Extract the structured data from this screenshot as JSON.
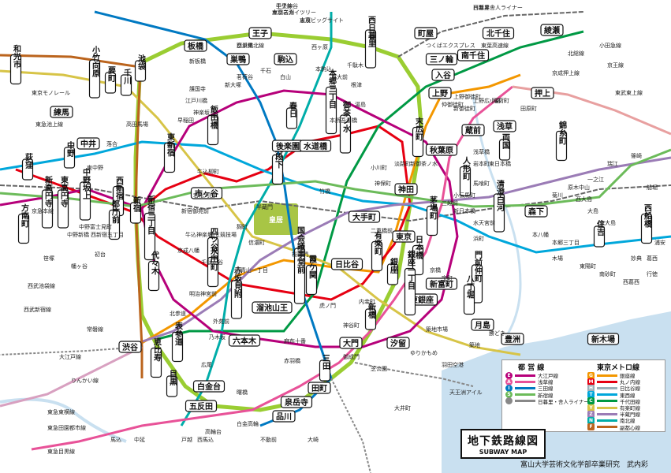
{
  "colors": {
    "ginza": "#f39700",
    "marunouchi": "#e60012",
    "hibiya": "#9caeb7",
    "tozai": "#00a7db",
    "chiyoda": "#009944",
    "yurakucho": "#d7c447",
    "hanzomon": "#9b7cb6",
    "namboku": "#00ada9",
    "fukutoshin": "#bb641d",
    "oedo": "#b6007a",
    "asakusa": "#e85298",
    "mita": "#0079c2",
    "shinjuku": "#6cbb5a",
    "jr_yamanote": "#9acd32",
    "jr": "#666666",
    "water": "#c9e0f0",
    "palace": "#a8c545"
  },
  "palace": {
    "label": "皇居"
  },
  "stations": [
    {
      "id": "ikebukuro",
      "label": "池袋"
    },
    {
      "id": "shinjuku",
      "label": "新宿"
    },
    {
      "id": "shibuya",
      "label": "渋谷"
    },
    {
      "id": "tokyo",
      "label": "東京"
    },
    {
      "id": "ueno",
      "label": "上野"
    },
    {
      "id": "otemachi",
      "label": "大手町"
    },
    {
      "id": "ginza",
      "label": "銀座"
    },
    {
      "id": "oji",
      "label": "王子"
    },
    {
      "id": "itabashi",
      "label": "板橋"
    },
    {
      "id": "sugamo",
      "label": "巣鴨"
    },
    {
      "id": "komagome",
      "label": "駒込"
    },
    {
      "id": "nishinippori",
      "label": "西日暮里"
    },
    {
      "id": "machiya",
      "label": "町屋"
    },
    {
      "id": "kitasenju",
      "label": "北千住"
    },
    {
      "id": "ayase",
      "label": "綾瀬"
    },
    {
      "id": "oshiage",
      "label": "押上"
    },
    {
      "id": "kinshicho",
      "label": "錦糸町"
    },
    {
      "id": "akihabara",
      "label": "秋葉原"
    },
    {
      "id": "kanda",
      "label": "神田"
    },
    {
      "id": "iidabashi",
      "label": "飯田橋"
    },
    {
      "id": "ichigaya",
      "label": "市ヶ谷"
    },
    {
      "id": "yotsuya",
      "label": "四ツ谷"
    },
    {
      "id": "akasakamitsuke",
      "label": "赤坂見附"
    },
    {
      "id": "tameikesanno",
      "label": "溜池山王"
    },
    {
      "id": "kasumigaseki",
      "label": "霞ケ関"
    },
    {
      "id": "hibiya",
      "label": "日比谷"
    },
    {
      "id": "yurakucho",
      "label": "有楽町"
    },
    {
      "id": "shinbashi",
      "label": "新橋"
    },
    {
      "id": "shiodome",
      "label": "汐留"
    },
    {
      "id": "daimon",
      "label": "大門"
    },
    {
      "id": "mita",
      "label": "三田"
    },
    {
      "id": "tamachi",
      "label": "田町"
    },
    {
      "id": "shinagawa",
      "label": "品川"
    },
    {
      "id": "gotanda",
      "label": "五反田"
    },
    {
      "id": "meguro",
      "label": "目黒"
    },
    {
      "id": "ebisu",
      "label": "恵比寿"
    },
    {
      "id": "omotesando",
      "label": "表参道"
    },
    {
      "id": "roppongi",
      "label": "六本木"
    },
    {
      "id": "nakano",
      "label": "中野"
    },
    {
      "id": "ogikubo",
      "label": "荻窪"
    },
    {
      "id": "nerima",
      "label": "練馬"
    },
    {
      "id": "nakai",
      "label": "中井"
    },
    {
      "id": "kudanshita",
      "label": "九段下"
    },
    {
      "id": "kasuga",
      "label": "春日"
    },
    {
      "id": "korakuen",
      "label": "後楽園"
    },
    {
      "id": "ochanomizu",
      "label": "御茶ノ水"
    },
    {
      "id": "nihonbashi",
      "label": "日本橋"
    },
    {
      "id": "kayabacho",
      "label": "茅場町"
    },
    {
      "id": "monzennakacho",
      "label": "門前仲町"
    },
    {
      "id": "kiyosumi",
      "label": "清澄白河"
    },
    {
      "id": "morishita",
      "label": "森下"
    },
    {
      "id": "sumiyoshi",
      "label": "住吉"
    },
    {
      "id": "nishifunabashi",
      "label": "西船橋"
    },
    {
      "id": "honancho",
      "label": "方南町"
    },
    {
      "id": "toyosu",
      "label": "豊洲"
    },
    {
      "id": "tsukishima",
      "label": "月島"
    },
    {
      "id": "shintomicho",
      "label": "新富町"
    },
    {
      "id": "shinkiba",
      "label": "新木場"
    },
    {
      "id": "sengakuji",
      "label": "泉岳寺"
    },
    {
      "id": "kudan",
      "label": "水道橋"
    },
    {
      "id": "ryogoku",
      "label": "両国"
    },
    {
      "id": "asakusa",
      "label": "浅草"
    },
    {
      "id": "kuramae",
      "label": "蔵前"
    },
    {
      "id": "higashiginza",
      "label": "東銀座"
    },
    {
      "id": "hatchobori",
      "label": "八丁堀"
    },
    {
      "id": "shirokane",
      "label": "白金台"
    },
    {
      "id": "higashishinjuku",
      "label": "東新宿"
    },
    {
      "id": "shinjukusanchome",
      "label": "新宿三丁目"
    },
    {
      "id": "nishishinjuku",
      "label": "西新宿"
    },
    {
      "id": "tochomae",
      "label": "都庁前"
    },
    {
      "id": "yoyogi",
      "label": "代々木"
    },
    {
      "id": "kokkai",
      "label": "国会議事堂前"
    },
    {
      "id": "nagatacho",
      "label": "永田町"
    },
    {
      "id": "ningyocho",
      "label": "人形町"
    },
    {
      "id": "minowa",
      "label": "三ノ輪"
    },
    {
      "id": "iriya",
      "label": "入谷"
    },
    {
      "id": "minamisenju",
      "label": "南千住"
    },
    {
      "id": "wakoshi",
      "label": "和光市"
    },
    {
      "id": "kotakemukaihara",
      "label": "小竹向原"
    },
    {
      "id": "kanamecho",
      "label": "要町"
    },
    {
      "id": "senkawa",
      "label": "千川"
    },
    {
      "id": "shinkoenji",
      "label": "新高円寺"
    },
    {
      "id": "nakanosakaue",
      "label": "中野坂上"
    },
    {
      "id": "higashikoenji",
      "label": "東高円寺"
    },
    {
      "id": "hongosanchome",
      "label": "本郷三丁目"
    },
    {
      "id": "suehirocho",
      "label": "末広町"
    },
    {
      "id": "ginzaitchome",
      "label": "銀座一丁目"
    }
  ],
  "small_labels": [
    {
      "id": "s1",
      "label": "西新井"
    },
    {
      "id": "s2",
      "label": "赤羽岩淵"
    },
    {
      "id": "s3",
      "label": "志茂"
    },
    {
      "id": "s4",
      "label": "王子神谷"
    },
    {
      "id": "s5",
      "label": "西巣鴨"
    },
    {
      "id": "s6",
      "label": "新板橋"
    },
    {
      "id": "s7",
      "label": "西ヶ原"
    },
    {
      "id": "s8",
      "label": "本駒込"
    },
    {
      "id": "s9",
      "label": "東大前"
    },
    {
      "id": "s10",
      "label": "千駄木"
    },
    {
      "id": "s11",
      "label": "根津"
    },
    {
      "id": "s12",
      "label": "湯島"
    },
    {
      "id": "s13",
      "label": "千石"
    },
    {
      "id": "s14",
      "label": "白山"
    },
    {
      "id": "s15",
      "label": "茗荷谷"
    },
    {
      "id": "s16",
      "label": "新大塚"
    },
    {
      "id": "s17",
      "label": "護国寺"
    },
    {
      "id": "s18",
      "label": "江戸川橋"
    },
    {
      "id": "s19",
      "label": "神楽坂"
    },
    {
      "id": "s20",
      "label": "早稲田"
    },
    {
      "id": "s21",
      "label": "高田馬場"
    },
    {
      "id": "s22",
      "label": "落合"
    },
    {
      "id": "s23",
      "label": "東中野"
    },
    {
      "id": "s24",
      "label": "中野富士見町"
    },
    {
      "id": "s25",
      "label": "中野新橋"
    },
    {
      "id": "s26",
      "label": "西新宿五丁目"
    },
    {
      "id": "s27",
      "label": "初台"
    },
    {
      "id": "s28",
      "label": "幡ヶ谷"
    },
    {
      "id": "s29",
      "label": "笹塚"
    },
    {
      "id": "s30",
      "label": "明治神宮前"
    },
    {
      "id": "s31",
      "label": "北参道"
    },
    {
      "id": "s32",
      "label": "国立競技場"
    },
    {
      "id": "s33",
      "label": "千駄ヶ谷"
    },
    {
      "id": "s34",
      "label": "信濃町"
    },
    {
      "id": "s35",
      "label": "青山一丁目"
    },
    {
      "id": "s36",
      "label": "外苑前"
    },
    {
      "id": "s37",
      "label": "乃木坂"
    },
    {
      "id": "s38",
      "label": "広尾"
    },
    {
      "id": "s39",
      "label": "麻布十番"
    },
    {
      "id": "s40",
      "label": "赤羽橋"
    },
    {
      "id": "s41",
      "label": "神谷町"
    },
    {
      "id": "s42",
      "label": "御成門"
    },
    {
      "id": "s43",
      "label": "芝公園"
    },
    {
      "id": "s44",
      "label": "虎ノ門"
    },
    {
      "id": "s45",
      "label": "内幸町"
    },
    {
      "id": "s46",
      "label": "桜田門"
    },
    {
      "id": "s47",
      "label": "二重橋前"
    },
    {
      "id": "s48",
      "label": "京橋"
    },
    {
      "id": "s49",
      "label": "宝町"
    },
    {
      "id": "s50",
      "label": "築地"
    },
    {
      "id": "s51",
      "label": "勝どき"
    },
    {
      "id": "s52",
      "label": "築地市場"
    },
    {
      "id": "s53",
      "label": "竹橋"
    },
    {
      "id": "s54",
      "label": "半蔵門"
    },
    {
      "id": "s55",
      "label": "麹町"
    },
    {
      "id": "s56",
      "label": "小川町"
    },
    {
      "id": "s57",
      "label": "淡路町"
    },
    {
      "id": "s58",
      "label": "神保町"
    },
    {
      "id": "s59",
      "label": "新御茶ノ水"
    },
    {
      "id": "s60",
      "label": "岩本町"
    },
    {
      "id": "s61",
      "label": "馬喰町"
    },
    {
      "id": "s62",
      "label": "小伝馬町"
    },
    {
      "id": "s63",
      "label": "三越前"
    },
    {
      "id": "s64",
      "label": "新日本橋"
    },
    {
      "id": "s65",
      "label": "水天宮前"
    },
    {
      "id": "s66",
      "label": "浜町"
    },
    {
      "id": "s67",
      "label": "東日本橋"
    },
    {
      "id": "s68",
      "label": "浅草橋"
    },
    {
      "id": "s69",
      "label": "新御徒町"
    },
    {
      "id": "s70",
      "label": "仲御徒町"
    },
    {
      "id": "s71",
      "label": "上野御徒町"
    },
    {
      "id": "s72",
      "label": "上野広小路"
    },
    {
      "id": "s73",
      "label": "稲荷町"
    },
    {
      "id": "s74",
      "label": "田原町"
    },
    {
      "id": "s75",
      "label": "本所吾妻橋"
    },
    {
      "id": "s76",
      "label": "本郷三丁目"
    },
    {
      "id": "s77",
      "label": "木場"
    },
    {
      "id": "s78",
      "label": "東陽町"
    },
    {
      "id": "s79",
      "label": "南砂町"
    },
    {
      "id": "s80",
      "label": "西葛西"
    },
    {
      "id": "s81",
      "label": "葛西"
    },
    {
      "id": "s82",
      "label": "浦安"
    },
    {
      "id": "s83",
      "label": "行徳"
    },
    {
      "id": "s84",
      "label": "妙典"
    },
    {
      "id": "s85",
      "label": "原木中山"
    },
    {
      "id": "s86",
      "label": "一之江"
    },
    {
      "id": "s87",
      "label": "瑞江"
    },
    {
      "id": "s88",
      "label": "篠崎"
    },
    {
      "id": "s89",
      "label": "本八幡"
    },
    {
      "id": "s90",
      "label": "菊川"
    },
    {
      "id": "s91",
      "label": "西大島"
    },
    {
      "id": "s92",
      "label": "大島"
    },
    {
      "id": "s93",
      "label": "東大島"
    },
    {
      "id": "s94",
      "label": "船堀"
    },
    {
      "id": "s95",
      "label": "京成八幡"
    },
    {
      "id": "s96",
      "label": "新宿御苑前"
    },
    {
      "id": "s97",
      "label": "若松河田"
    },
    {
      "id": "s98",
      "label": "牛込柳町"
    },
    {
      "id": "s99",
      "label": "牛込神楽坂"
    },
    {
      "id": "s100",
      "label": "曙橋"
    },
    {
      "id": "s101",
      "label": "白金高輪"
    },
    {
      "id": "s102",
      "label": "高輪台"
    },
    {
      "id": "s103",
      "label": "戸越"
    },
    {
      "id": "s104",
      "label": "中延"
    },
    {
      "id": "s105",
      "label": "馬込"
    },
    {
      "id": "s106",
      "label": "西馬込"
    },
    {
      "id": "s107",
      "label": "不動前"
    },
    {
      "id": "s108",
      "label": "大崎"
    },
    {
      "id": "s109",
      "label": "大井町"
    },
    {
      "id": "s110",
      "label": "天王洲アイル"
    },
    {
      "id": "s111",
      "label": "羽田空港"
    },
    {
      "id": "s112",
      "label": "ゆりかもめ"
    },
    {
      "id": "s113",
      "label": "りんかい線"
    },
    {
      "id": "s114",
      "label": "大江戸線"
    },
    {
      "id": "s115",
      "label": "東急東横線"
    },
    {
      "id": "s116",
      "label": "東急田園都市線"
    },
    {
      "id": "s117",
      "label": "東急目黒線"
    },
    {
      "id": "s118",
      "label": "東急池上線"
    },
    {
      "id": "s119",
      "label": "京急本線"
    },
    {
      "id": "s120",
      "label": "東京モノレール"
    },
    {
      "id": "s121",
      "label": "西武池袋線"
    },
    {
      "id": "s122",
      "label": "西武新宿線"
    },
    {
      "id": "s123",
      "label": "東武東上線"
    },
    {
      "id": "s124",
      "label": "京王線"
    },
    {
      "id": "s125",
      "label": "小田急線"
    },
    {
      "id": "s126",
      "label": "京成押上線"
    },
    {
      "id": "s127",
      "label": "北総線"
    },
    {
      "id": "s128",
      "label": "東葉高速線"
    },
    {
      "id": "s129",
      "label": "京葉線"
    },
    {
      "id": "s130",
      "label": "常磐線"
    },
    {
      "id": "s131",
      "label": "つくばエクスプレス"
    },
    {
      "id": "s132",
      "label": "日暮里舎人ライナー"
    },
    {
      "id": "s133",
      "label": "東京スカイツリー"
    },
    {
      "id": "s134",
      "label": "東京ビッグサイト"
    },
    {
      "id": "s135",
      "label": "中央線"
    },
    {
      "id": "s136",
      "label": "京浜東北線"
    }
  ],
  "legend": {
    "toei_title": "都 営 線",
    "metro_title": "東京メトロ線",
    "toei": [
      {
        "code": "E",
        "color": "#b6007a",
        "name": "大江戸線"
      },
      {
        "code": "A",
        "color": "#e85298",
        "name": "浅草線"
      },
      {
        "code": "I",
        "color": "#0079c2",
        "name": "三田線"
      },
      {
        "code": "S",
        "color": "#6cbb5a",
        "name": "新宿線"
      },
      {
        "code": "",
        "color": "#888888",
        "name": "日暮里・舎人ライナー"
      }
    ],
    "metro": [
      {
        "code": "G",
        "color": "#f39700",
        "name": "銀座線"
      },
      {
        "code": "M",
        "color": "#e60012",
        "name": "丸ノ内線"
      },
      {
        "code": "H",
        "color": "#9caeb7",
        "name": "日比谷線"
      },
      {
        "code": "T",
        "color": "#00a7db",
        "name": "東西線"
      },
      {
        "code": "C",
        "color": "#009944",
        "name": "千代田線"
      },
      {
        "code": "Y",
        "color": "#d7c447",
        "name": "有楽町線"
      },
      {
        "code": "Z",
        "color": "#9b7cb6",
        "name": "半蔵門線"
      },
      {
        "code": "N",
        "color": "#00ada9",
        "name": "南北線"
      },
      {
        "code": "F",
        "color": "#bb641d",
        "name": "副都心線"
      }
    ]
  },
  "title": {
    "jp": "地下鉄路線図",
    "en": "SUBWAY MAP"
  },
  "credit": "富山大学芸術文化学部卒業研究　武内彩"
}
